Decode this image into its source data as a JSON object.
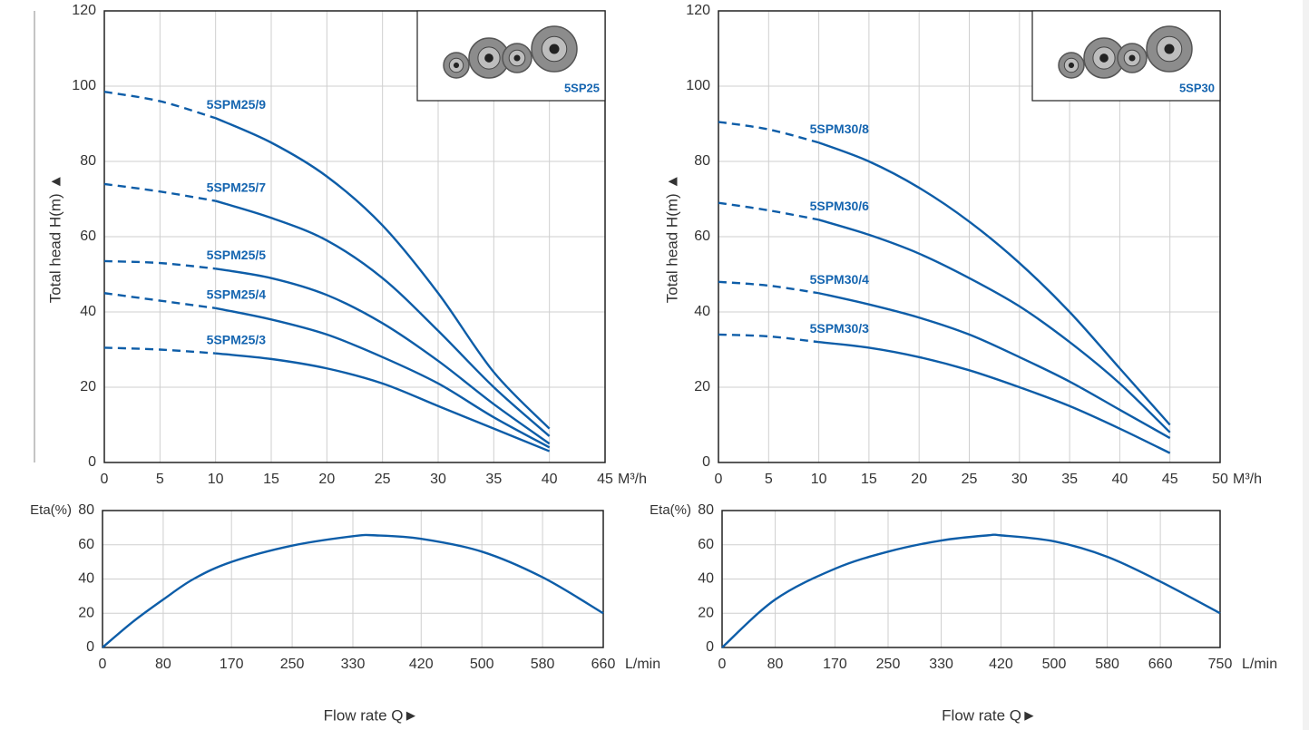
{
  "chart_data": [
    {
      "type": "line",
      "y_label": "Total head H(m) ▲",
      "x_unit": "M³/h",
      "inset_label": "5SP25",
      "x": [
        0,
        5,
        10,
        15,
        20,
        25,
        30,
        35,
        40
      ],
      "xlim": [
        0,
        45
      ],
      "xticks": [
        0,
        5,
        10,
        15,
        20,
        25,
        30,
        35,
        40,
        45
      ],
      "ylim": [
        0,
        120
      ],
      "yticks": [
        0,
        20,
        40,
        60,
        80,
        100,
        120
      ],
      "grid": true,
      "dashed_below_x": 10,
      "series": [
        {
          "name": "5SPM25/9",
          "color": "#0d5da8",
          "values": [
            98.5,
            96,
            91.5,
            85,
            76,
            63,
            45,
            24,
            9
          ]
        },
        {
          "name": "5SPM25/7",
          "color": "#0d5da8",
          "values": [
            74,
            72,
            69.5,
            65,
            59,
            49,
            35,
            20,
            7
          ]
        },
        {
          "name": "5SPM25/5",
          "color": "#0d5da8",
          "values": [
            53.5,
            53,
            51.5,
            49,
            44.5,
            37,
            27,
            15.5,
            5
          ]
        },
        {
          "name": "5SPM25/4",
          "color": "#0d5da8",
          "values": [
            45,
            43,
            41,
            38,
            34,
            28,
            21,
            12,
            4
          ]
        },
        {
          "name": "5SPM25/3",
          "color": "#0d5da8",
          "values": [
            30.5,
            30,
            29,
            27.5,
            25,
            21,
            15,
            9,
            3
          ]
        }
      ]
    },
    {
      "type": "line",
      "y_label": "Total head H(m) ▲",
      "x_unit": "M³/h",
      "inset_label": "5SP30",
      "x": [
        0,
        5,
        10,
        15,
        20,
        25,
        30,
        35,
        40,
        45
      ],
      "xlim": [
        0,
        50
      ],
      "xticks": [
        0,
        5,
        10,
        15,
        20,
        25,
        30,
        35,
        40,
        45,
        50
      ],
      "ylim": [
        0,
        120
      ],
      "yticks": [
        0,
        20,
        40,
        60,
        80,
        100,
        120
      ],
      "grid": true,
      "dashed_below_x": 10,
      "series": [
        {
          "name": "5SPM30/8",
          "color": "#0d5da8",
          "values": [
            90.5,
            88.5,
            85,
            80,
            73,
            64,
            53,
            40,
            25,
            10
          ]
        },
        {
          "name": "5SPM30/6",
          "color": "#0d5da8",
          "values": [
            69,
            67,
            64.5,
            60.5,
            55.5,
            49,
            41.5,
            32,
            21,
            8
          ]
        },
        {
          "name": "5SPM30/4",
          "color": "#0d5da8",
          "values": [
            48,
            47,
            45,
            42,
            38.5,
            34,
            28,
            21.5,
            14,
            6.5
          ]
        },
        {
          "name": "5SPM30/3",
          "color": "#0d5da8",
          "values": [
            34,
            33.5,
            32,
            30.5,
            28,
            24.5,
            20,
            15,
            9,
            2.5
          ]
        }
      ]
    },
    {
      "type": "line",
      "y_label": "Eta(%)",
      "x_unit": "L/min",
      "x_label": "Flow rate Q►",
      "x": [
        0,
        40,
        80,
        120,
        170,
        250,
        330,
        360,
        420,
        500,
        580,
        660
      ],
      "xlim": [
        0,
        660
      ],
      "xticks": [
        0,
        80,
        170,
        250,
        330,
        420,
        500,
        580,
        660
      ],
      "ylim": [
        0,
        80
      ],
      "yticks": [
        0,
        20,
        40,
        60,
        80
      ],
      "grid": true,
      "series": [
        {
          "color": "#0d5da8",
          "values": [
            0,
            15,
            28,
            40,
            50,
            59.5,
            65,
            65.5,
            63.5,
            56,
            41,
            20
          ]
        }
      ]
    },
    {
      "type": "line",
      "y_label": "Eta(%)",
      "x_unit": "L/min",
      "x_label": "Flow rate Q►",
      "x": [
        0,
        80,
        170,
        250,
        330,
        400,
        420,
        500,
        580,
        660,
        750
      ],
      "xlim": [
        0,
        750
      ],
      "xticks": [
        0,
        80,
        170,
        250,
        330,
        420,
        500,
        580,
        660,
        750
      ],
      "ylim": [
        0,
        80
      ],
      "yticks": [
        0,
        20,
        40,
        60,
        80
      ],
      "grid": true,
      "series": [
        {
          "color": "#0d5da8",
          "values": [
            0,
            28,
            46,
            56,
            62.5,
            65.5,
            65.5,
            62,
            53,
            38.5,
            20
          ]
        }
      ]
    }
  ]
}
